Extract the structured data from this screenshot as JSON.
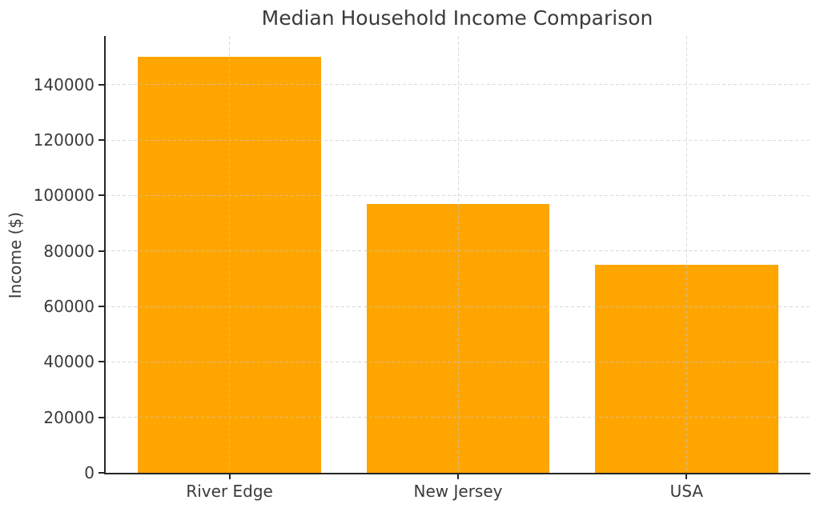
{
  "chart_data": {
    "type": "bar",
    "title": "Median Household Income Comparison",
    "xlabel": "",
    "ylabel": "Income ($)",
    "categories": [
      "River Edge",
      "New Jersey",
      "USA"
    ],
    "values": [
      150000,
      97000,
      75000
    ],
    "ylim": [
      0,
      157500
    ],
    "yticks": [
      0,
      20000,
      40000,
      60000,
      80000,
      100000,
      120000,
      140000
    ],
    "ytick_labels": [
      "0",
      "20000",
      "40000",
      "60000",
      "80000",
      "100000",
      "120000",
      "140000"
    ],
    "bar_color": "#FFA500",
    "grid": "dashed light-gray, horizontal and vertical, drawn above bars",
    "legend": "none",
    "spine_color": "#262626",
    "text_color": "#3a3a3a",
    "background_color": "#ffffff"
  }
}
